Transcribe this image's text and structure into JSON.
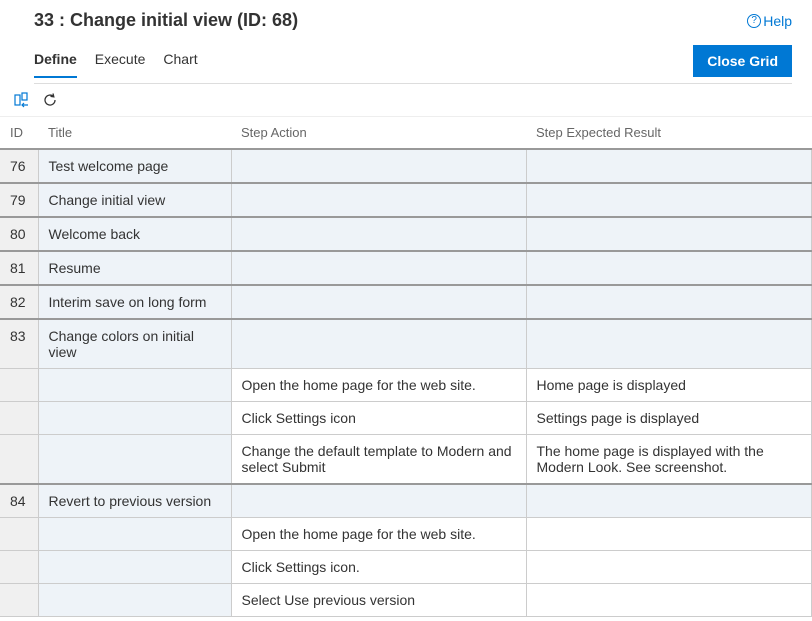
{
  "header": {
    "title": "33 : Change initial view (ID: 68)",
    "help_label": "Help"
  },
  "tabs": {
    "items": [
      {
        "label": "Define",
        "active": true
      },
      {
        "label": "Execute",
        "active": false
      },
      {
        "label": "Chart",
        "active": false
      }
    ],
    "close_label": "Close Grid"
  },
  "grid": {
    "columns": {
      "id": "ID",
      "title": "Title",
      "action": "Step Action",
      "expected": "Step Expected Result"
    },
    "rows": [
      {
        "type": "parent",
        "id": "76",
        "title": "Test welcome page",
        "action": "",
        "expected": ""
      },
      {
        "type": "parent",
        "id": "79",
        "title": "Change initial view",
        "action": "",
        "expected": ""
      },
      {
        "type": "parent",
        "id": "80",
        "title": "Welcome back",
        "action": "",
        "expected": ""
      },
      {
        "type": "parent",
        "id": "81",
        "title": "Resume",
        "action": "",
        "expected": ""
      },
      {
        "type": "parent",
        "id": "82",
        "title": "Interim save on long form",
        "action": "",
        "expected": ""
      },
      {
        "type": "parent",
        "id": "83",
        "title": "Change colors on initial view",
        "action": "",
        "expected": ""
      },
      {
        "type": "step",
        "id": "",
        "title": "",
        "action": "Open the home page for the web site.",
        "expected": "Home page is displayed"
      },
      {
        "type": "step",
        "id": "",
        "title": "",
        "action": "Click Settings icon",
        "expected": "Settings page is displayed"
      },
      {
        "type": "step",
        "id": "",
        "title": "",
        "action": "Change the default template to Modern and select Submit",
        "expected": "The home page is displayed with the Modern Look. See screenshot."
      },
      {
        "type": "parent",
        "id": "84",
        "title": "Revert to previous version",
        "action": "",
        "expected": ""
      },
      {
        "type": "step",
        "id": "",
        "title": "",
        "action": "Open the home page for the web site.",
        "expected": ""
      },
      {
        "type": "step",
        "id": "",
        "title": "",
        "action": "Click Settings icon.",
        "expected": ""
      },
      {
        "type": "step",
        "id": "",
        "title": "",
        "action": "Select Use previous version",
        "expected": ""
      }
    ]
  }
}
